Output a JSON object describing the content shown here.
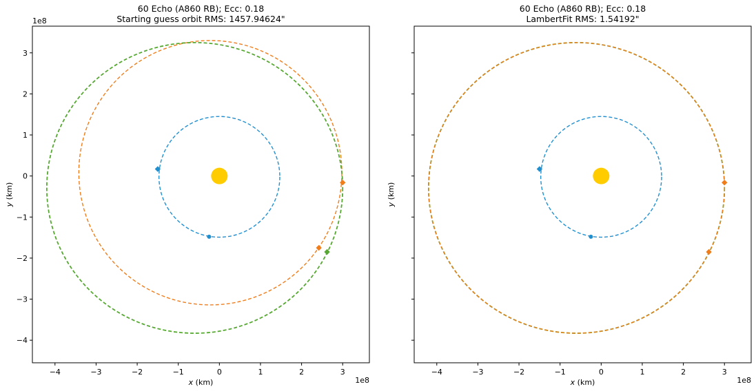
{
  "chart_data": [
    {
      "type": "scatter",
      "title": "60 Echo (A860 RB); Ecc: 0.18",
      "subtitle": "Starting guess orbit RMS: 1457.94624\"",
      "xlabel_var": "x",
      "xlabel_unit": " (km)",
      "ylabel_var": "y",
      "ylabel_unit": " (km)",
      "x_offset_text": "1e8",
      "y_offset_text": "1e8",
      "xlim": [
        -4.55,
        3.65
      ],
      "ylim": [
        -4.55,
        3.65
      ],
      "xticks": [
        -4,
        -3,
        -2,
        -1,
        0,
        1,
        2,
        3
      ],
      "xtick_labels": [
        "−4",
        "−3",
        "−2",
        "−1",
        "0",
        "1",
        "2",
        "3"
      ],
      "yticks": [
        -4,
        -3,
        -2,
        -1,
        0,
        1,
        2,
        3
      ],
      "ytick_labels": [
        "−4",
        "−3",
        "−2",
        "−1",
        "0",
        "1",
        "2",
        "3"
      ],
      "show_yticklabels": true,
      "sun": {
        "x": 0,
        "y": 0,
        "color": "#ffcc00"
      },
      "orbits": [
        {
          "cx": 0,
          "cy": -0.02,
          "rx": 1.47,
          "ry": 1.47,
          "color": "#1f8fd0",
          "width": 1.4
        },
        {
          "cx": -0.22,
          "cy": 0.08,
          "rx": 3.2,
          "ry": 3.22,
          "color": "#f07d1a",
          "width": 1.4
        },
        {
          "cx": -0.6,
          "cy": -0.29,
          "rx": 3.6,
          "ry": 3.54,
          "color": "#56a832",
          "width": 1.8
        }
      ],
      "points": [
        {
          "x": -1.5,
          "y": 0.17,
          "color": "#1f8fd0",
          "shape": "diamond"
        },
        {
          "x": -0.25,
          "y": -1.48,
          "color": "#1f8fd0",
          "shape": "circle"
        },
        {
          "x": 3.0,
          "y": -0.16,
          "color": "#f07d1a",
          "shape": "diamond"
        },
        {
          "x": 2.42,
          "y": -1.75,
          "color": "#f07d1a",
          "shape": "diamond"
        },
        {
          "x": 2.62,
          "y": -1.85,
          "color": "#56a832",
          "shape": "diamond"
        }
      ]
    },
    {
      "type": "scatter",
      "title": "60 Echo (A860 RB); Ecc: 0.18",
      "subtitle": "LambertFit RMS: 1.54192\"",
      "xlabel_var": "x",
      "xlabel_unit": " (km)",
      "ylabel_var": "y",
      "ylabel_unit": " (km)",
      "x_offset_text": "1e8",
      "y_offset_text": "",
      "xlim": [
        -4.55,
        3.65
      ],
      "ylim": [
        -4.55,
        3.65
      ],
      "xticks": [
        -4,
        -3,
        -2,
        -1,
        0,
        1,
        2,
        3
      ],
      "xtick_labels": [
        "−4",
        "−3",
        "−2",
        "−1",
        "0",
        "1",
        "2",
        "3"
      ],
      "yticks": [
        -4,
        -3,
        -2,
        -1,
        0,
        1,
        2,
        3
      ],
      "ytick_labels": [
        "−4",
        "−3",
        "−2",
        "−1",
        "0",
        "1",
        "2",
        "3"
      ],
      "show_yticklabels": false,
      "sun": {
        "x": 0,
        "y": 0,
        "color": "#ffcc00"
      },
      "orbits": [
        {
          "cx": 0,
          "cy": -0.02,
          "rx": 1.47,
          "ry": 1.47,
          "color": "#1f8fd0",
          "width": 1.4
        },
        {
          "cx": -0.6,
          "cy": -0.29,
          "rx": 3.6,
          "ry": 3.54,
          "color": "#56a832",
          "width": 1.8
        },
        {
          "cx": -0.6,
          "cy": -0.29,
          "rx": 3.6,
          "ry": 3.54,
          "color": "#f07d1a",
          "width": 1.4
        }
      ],
      "points": [
        {
          "x": -1.5,
          "y": 0.17,
          "color": "#1f8fd0",
          "shape": "diamond"
        },
        {
          "x": -0.25,
          "y": -1.48,
          "color": "#1f8fd0",
          "shape": "circle"
        },
        {
          "x": 3.0,
          "y": -0.16,
          "color": "#f07d1a",
          "shape": "diamond"
        },
        {
          "x": 2.62,
          "y": -1.85,
          "color": "#f07d1a",
          "shape": "diamond"
        }
      ]
    }
  ]
}
